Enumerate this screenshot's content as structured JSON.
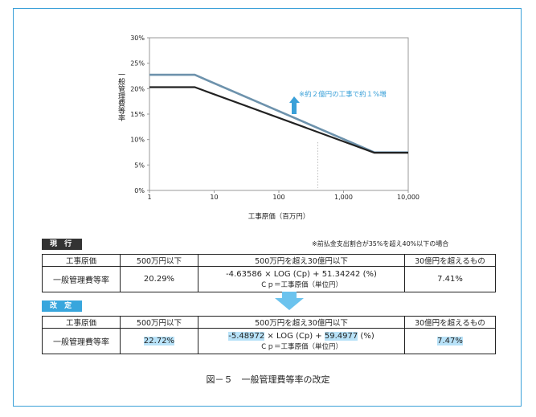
{
  "chart_data": {
    "type": "line",
    "ylabel": "一般管理費等率",
    "xlabel": "工事原価（百万円）",
    "x_ticks": [
      "1",
      "10",
      "100",
      "1,000",
      "10,000"
    ],
    "y_ticks": [
      "0%",
      "5%",
      "10%",
      "15%",
      "20%",
      "25%",
      "30%"
    ],
    "xlim": [
      1,
      10000
    ],
    "ylim": [
      0,
      30
    ],
    "x_scale": "log",
    "series": [
      {
        "color": "#6d92ac",
        "points": [
          [
            1,
            22.72
          ],
          [
            5,
            22.72
          ],
          [
            3000,
            7.47
          ],
          [
            10000,
            7.47
          ]
        ]
      },
      {
        "color": "#222222",
        "points": [
          [
            1,
            20.29
          ],
          [
            5,
            20.29
          ],
          [
            3000,
            7.41
          ],
          [
            10000,
            7.41
          ]
        ]
      }
    ],
    "annotation": "※約２億円の工事で約１%増"
  },
  "current": {
    "tag": "現 行",
    "note": "※前払金支出割合が35%を超え40%以下の場合",
    "headers": [
      "工事原価",
      "500万円以下",
      "500万円を超え30億円以下",
      "30億円を超えるもの"
    ],
    "row_label": "一般管理費等率",
    "v1": "20.29%",
    "f_coef": "-4.63586",
    "f_mid": "× LOG (Cp) +",
    "f_const": "51.34242",
    "f_tail": "(%)",
    "f_sub": "Ｃｐ＝工事原価（単位円）",
    "v3": "7.41%"
  },
  "revised": {
    "tag": "改 定",
    "headers": [
      "工事原価",
      "500万円以下",
      "500万円を超え30億円以下",
      "30億円を超えるもの"
    ],
    "row_label": "一般管理費等率",
    "v1": "22.72%",
    "f_coef": "-5.48972",
    "f_mid": "× LOG (Cp) +",
    "f_const": "59.4977",
    "f_tail": "(%)",
    "f_sub": "Ｃｐ＝工事原価（単位円）",
    "v3": "7.47%"
  },
  "caption": "図－５　一般管理費等率の改定"
}
